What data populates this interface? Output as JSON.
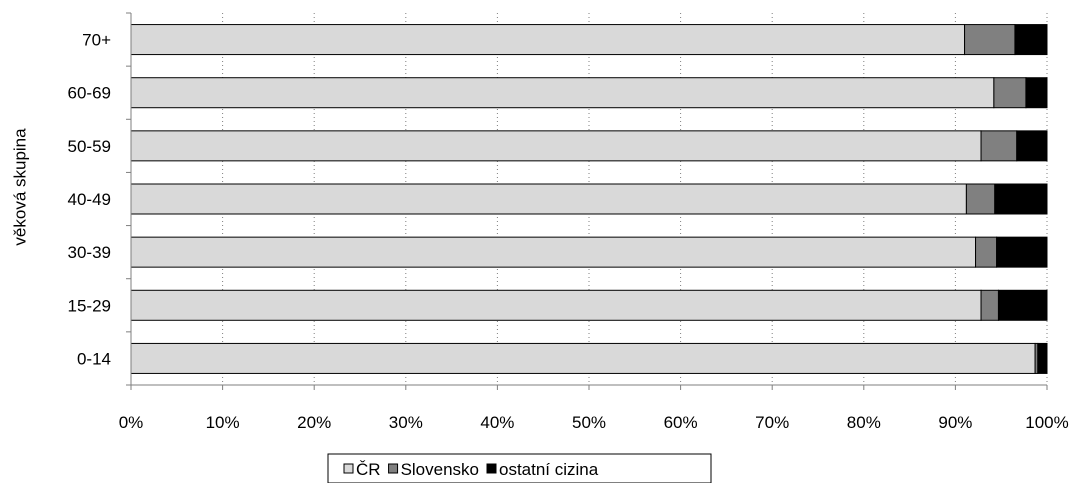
{
  "chart_data": {
    "type": "bar",
    "orientation": "horizontal",
    "stacked": "percent",
    "categories": [
      "70+",
      "60-69",
      "50-59",
      "40-49",
      "30-39",
      "15-29",
      "0-14"
    ],
    "series": [
      {
        "name": "ČR",
        "values": [
          91.0,
          94.2,
          92.8,
          91.2,
          92.2,
          92.8,
          98.7
        ],
        "color": "#d9d9d9"
      },
      {
        "name": "Slovensko",
        "values": [
          5.5,
          3.5,
          3.9,
          3.1,
          2.3,
          1.9,
          0.3
        ],
        "color": "#808080"
      },
      {
        "name": "ostatní cizina",
        "values": [
          3.5,
          2.3,
          3.3,
          5.7,
          5.5,
          5.3,
          1.0
        ],
        "color": "#000000"
      }
    ],
    "x_ticks": [
      "0%",
      "10%",
      "20%",
      "30%",
      "40%",
      "50%",
      "60%",
      "70%",
      "80%",
      "90%",
      "100%"
    ],
    "xlim": [
      0,
      100
    ],
    "ylabel": "věková skupina",
    "xlabel": "",
    "grid": "vertical dotted",
    "legend": "bottom"
  }
}
